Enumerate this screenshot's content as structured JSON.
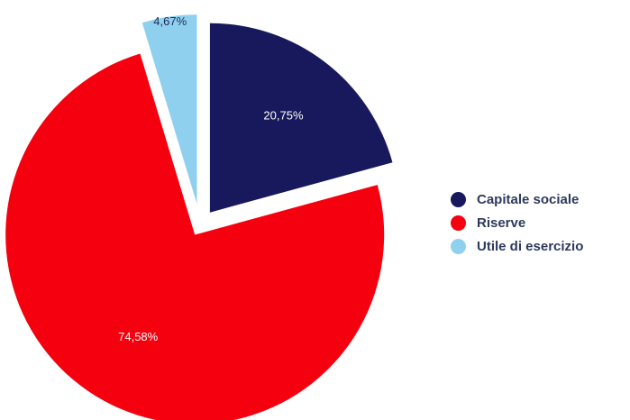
{
  "chart_data": {
    "type": "pie",
    "categories": [
      "Capitale sociale",
      "Riserve",
      "Utile di esercizio"
    ],
    "values": [
      20.75,
      74.58,
      4.67
    ],
    "value_labels": [
      "20,75%",
      "74,58%",
      "4,67%"
    ],
    "colors": [
      "#17195c",
      "#f5000e",
      "#8fd0ef"
    ],
    "exploded": true,
    "legend_position": "right"
  }
}
